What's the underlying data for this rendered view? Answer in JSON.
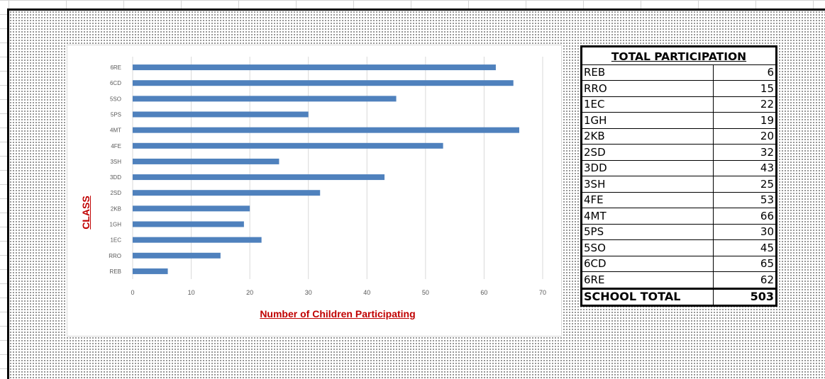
{
  "chart_data": {
    "type": "bar",
    "orientation": "horizontal",
    "categories": [
      "REB",
      "RRO",
      "1EC",
      "1GH",
      "2KB",
      "2SD",
      "3DD",
      "3SH",
      "4FE",
      "4MT",
      "5PS",
      "5SO",
      "6CD",
      "6RE"
    ],
    "values": [
      6,
      15,
      22,
      19,
      20,
      32,
      43,
      25,
      53,
      66,
      30,
      45,
      65,
      62
    ],
    "title": "",
    "xlabel": "Number of Children Participating",
    "ylabel": "CLASS",
    "xlim": [
      0,
      70
    ],
    "xticks": [
      0,
      10,
      20,
      30,
      40,
      50,
      60,
      70
    ],
    "grid": "vertical",
    "bar_color": "#4f81bd",
    "legend": "none"
  },
  "table": {
    "title": "TOTAL PARTICIPATION",
    "rows": [
      {
        "class": "REB",
        "count": "6"
      },
      {
        "class": "RRO",
        "count": "15"
      },
      {
        "class": "1EC",
        "count": "22"
      },
      {
        "class": "1GH",
        "count": "19"
      },
      {
        "class": "2KB",
        "count": "20"
      },
      {
        "class": "2SD",
        "count": "32"
      },
      {
        "class": "3DD",
        "count": "43"
      },
      {
        "class": "3SH",
        "count": "25"
      },
      {
        "class": "4FE",
        "count": "53"
      },
      {
        "class": "4MT",
        "count": "66"
      },
      {
        "class": "5PS",
        "count": "30"
      },
      {
        "class": "5SO",
        "count": "45"
      },
      {
        "class": "6CD",
        "count": "65"
      },
      {
        "class": "6RE",
        "count": "62"
      }
    ],
    "total_label": "SCHOOL TOTAL",
    "total_value": "503"
  }
}
